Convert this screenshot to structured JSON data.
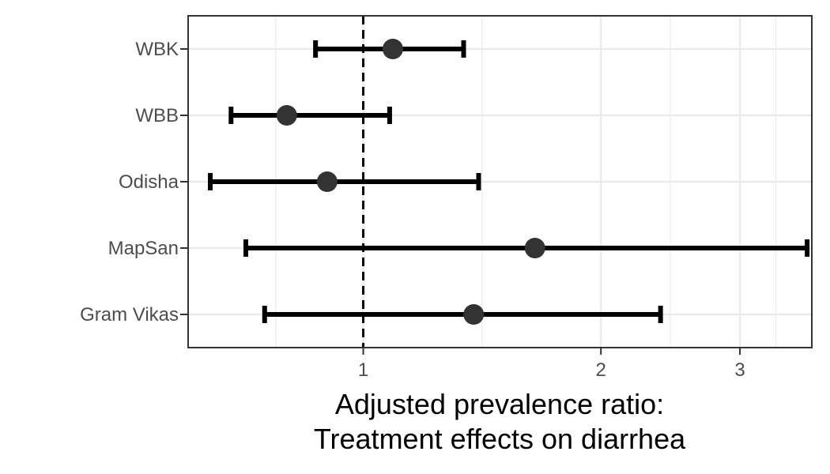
{
  "chart_data": {
    "type": "forest",
    "title": "",
    "xlabel_lines": [
      "Adjusted prevalence ratio:",
      "Treatment effects on diarrhea"
    ],
    "ylabel": "",
    "x_scale": "log",
    "xlim": [
      0.6,
      3.7
    ],
    "x_ticks": [
      1,
      2,
      3
    ],
    "x_tick_labels": [
      "1",
      "2",
      "3"
    ],
    "reference_line": 1,
    "grid": true,
    "categories": [
      "WBK",
      "WBB",
      "Odisha",
      "MapSan",
      "Gram Vikas"
    ],
    "estimates": [
      1.09,
      0.8,
      0.9,
      1.65,
      1.38
    ],
    "ci_lower": [
      0.87,
      0.68,
      0.64,
      0.71,
      0.75
    ],
    "ci_upper": [
      1.34,
      1.08,
      1.4,
      3.65,
      2.38
    ],
    "colors": {
      "point": "#333333",
      "interval": "#000000",
      "grid": "#ebebeb",
      "panel_border": "#333333"
    }
  }
}
